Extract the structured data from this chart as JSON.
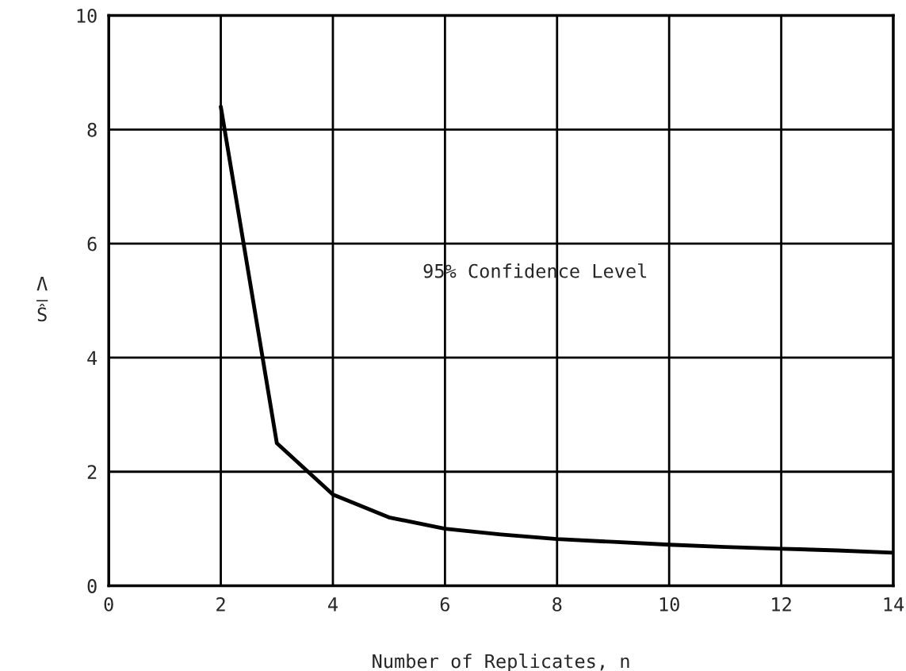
{
  "chart_data": {
    "type": "line",
    "xlabel": "Number of Replicates, n",
    "ylabel": "Λ\n—\nŜ",
    "x": [
      2,
      3,
      4,
      5,
      6,
      7,
      8,
      9,
      10,
      11,
      12,
      13,
      14
    ],
    "series": [
      {
        "color": "#000000",
        "values": [
          8.4,
          2.5,
          1.6,
          1.2,
          1.0,
          0.9,
          0.82,
          0.77,
          0.72,
          0.68,
          0.65,
          0.62,
          0.58
        ]
      }
    ],
    "xlim": [
      0,
      14
    ],
    "ylim": [
      0,
      10
    ],
    "xticks": [
      0,
      2,
      4,
      6,
      8,
      10,
      12,
      14
    ],
    "yticks": [
      0,
      2,
      4,
      6,
      8,
      10
    ],
    "grid": true,
    "marker": "none",
    "line_style": "solid",
    "annotations": [
      "95% Confidence Level"
    ]
  }
}
